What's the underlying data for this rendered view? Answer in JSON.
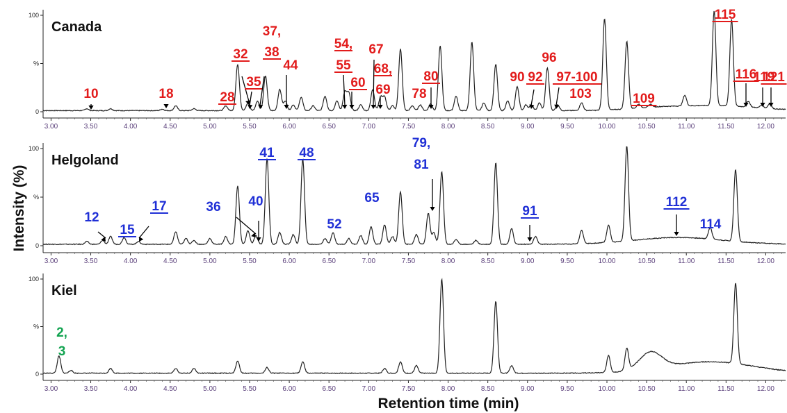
{
  "figure": {
    "ylabel": "Intensity (%)",
    "xlabel": "Retention time (min)"
  },
  "colors": {
    "trace": "#222222",
    "red": "#e21b1b",
    "blue": "#1f2fd6",
    "green": "#12a350",
    "tick": "#5a3f7a"
  },
  "chart_data": [
    {
      "type": "line",
      "title": "Canada",
      "xlabel": "Retention time (min)",
      "ylabel": "Intensity (%)",
      "xlim": [
        2.9,
        12.25
      ],
      "ylim": [
        0,
        100
      ],
      "xticks": [
        "3.00",
        "3.50",
        "4.00",
        "4.50",
        "5.00",
        "5.50",
        "6.00",
        "6.50",
        "7.00",
        "7.50",
        "8.00",
        "8.50",
        "9.00",
        "9.50",
        "10.00",
        "10.50",
        "11.00",
        "11.50",
        "12.00"
      ],
      "yticks": [
        "0",
        "%",
        "100"
      ],
      "grid": false,
      "baseline": 1.2,
      "peaks": [
        {
          "rt": 3.45,
          "h": 2
        },
        {
          "rt": 3.75,
          "h": 2
        },
        {
          "rt": 4.4,
          "h": 1.5
        },
        {
          "rt": 4.57,
          "h": 5
        },
        {
          "rt": 4.8,
          "h": 2
        },
        {
          "rt": 5.2,
          "h": 5
        },
        {
          "rt": 5.35,
          "h": 48
        },
        {
          "rt": 5.48,
          "h": 8
        },
        {
          "rt": 5.6,
          "h": 10
        },
        {
          "rt": 5.7,
          "h": 36
        },
        {
          "rt": 5.88,
          "h": 22
        },
        {
          "rt": 5.95,
          "h": 10
        },
        {
          "rt": 6.05,
          "h": 6
        },
        {
          "rt": 6.15,
          "h": 14
        },
        {
          "rt": 6.3,
          "h": 5
        },
        {
          "rt": 6.45,
          "h": 15
        },
        {
          "rt": 6.6,
          "h": 10
        },
        {
          "rt": 6.7,
          "h": 19
        },
        {
          "rt": 6.75,
          "h": 18
        },
        {
          "rt": 6.9,
          "h": 6
        },
        {
          "rt": 7.05,
          "h": 22
        },
        {
          "rt": 7.15,
          "h": 14
        },
        {
          "rt": 7.2,
          "h": 14
        },
        {
          "rt": 7.3,
          "h": 5
        },
        {
          "rt": 7.4,
          "h": 64
        },
        {
          "rt": 7.55,
          "h": 5
        },
        {
          "rt": 7.65,
          "h": 6
        },
        {
          "rt": 7.78,
          "h": 7
        },
        {
          "rt": 7.9,
          "h": 67
        },
        {
          "rt": 8.1,
          "h": 15
        },
        {
          "rt": 8.3,
          "h": 71
        },
        {
          "rt": 8.45,
          "h": 8
        },
        {
          "rt": 8.6,
          "h": 48
        },
        {
          "rt": 8.75,
          "h": 10
        },
        {
          "rt": 8.87,
          "h": 25
        },
        {
          "rt": 8.98,
          "h": 6
        },
        {
          "rt": 9.05,
          "h": 6
        },
        {
          "rt": 9.15,
          "h": 8
        },
        {
          "rt": 9.25,
          "h": 44
        },
        {
          "rt": 9.38,
          "h": 6
        },
        {
          "rt": 9.68,
          "h": 8
        },
        {
          "rt": 9.97,
          "h": 95
        },
        {
          "rt": 10.25,
          "h": 70
        },
        {
          "rt": 10.4,
          "h": 4
        },
        {
          "rt": 10.55,
          "h": 3
        },
        {
          "rt": 10.98,
          "h": 11
        },
        {
          "rt": 11.35,
          "h": 98
        },
        {
          "rt": 11.57,
          "h": 90
        },
        {
          "rt": 11.78,
          "h": 6
        },
        {
          "rt": 11.95,
          "h": 3
        },
        {
          "rt": 12.05,
          "h": 5
        }
      ],
      "drift": [
        {
          "rt": 10.6,
          "h": 2.5,
          "w": 0.35
        },
        {
          "rt": 11.4,
          "h": 5,
          "w": 0.5
        }
      ],
      "annotations": [
        {
          "label": "10",
          "underline": false,
          "color": "red",
          "rt": 3.45
        },
        {
          "label": "18",
          "underline": false,
          "color": "red",
          "rt": 4.4
        },
        {
          "label": "28",
          "underline": true,
          "color": "red",
          "rt": 5.2
        },
        {
          "label": "32",
          "underline": true,
          "color": "red",
          "rt": 5.35
        },
        {
          "label": "35",
          "underline": true,
          "color": "red",
          "rt": 5.48
        },
        {
          "label": "37,",
          "underline": false,
          "color": "red",
          "rt": 5.6
        },
        {
          "label": "38",
          "underline": true,
          "color": "red",
          "rt": 5.6
        },
        {
          "label": "44",
          "underline": false,
          "color": "red",
          "rt": 5.95
        },
        {
          "label": "54,",
          "underline": true,
          "color": "red",
          "rt": 6.7
        },
        {
          "label": "55",
          "underline": true,
          "color": "red",
          "rt": 6.7
        },
        {
          "label": "60",
          "underline": true,
          "color": "red",
          "rt": 6.78
        },
        {
          "label": "67",
          "underline": false,
          "color": "red",
          "rt": 7.05
        },
        {
          "label": "68,",
          "underline": true,
          "color": "red",
          "rt": 7.12
        },
        {
          "label": "69",
          "underline": false,
          "color": "red",
          "rt": 7.12
        },
        {
          "label": "78",
          "underline": false,
          "color": "red",
          "rt": 7.62
        },
        {
          "label": "80",
          "underline": true,
          "color": "red",
          "rt": 7.78
        },
        {
          "label": "90",
          "underline": false,
          "color": "red",
          "rt": 8.87
        },
        {
          "label": "92",
          "underline": true,
          "color": "red",
          "rt": 9.05
        },
        {
          "label": "96",
          "underline": false,
          "color": "red",
          "rt": 9.25
        },
        {
          "label": "97-100",
          "underline": true,
          "color": "red",
          "rt": 9.38
        },
        {
          "label": "103",
          "underline": false,
          "color": "red",
          "rt": 9.68
        },
        {
          "label": "109",
          "underline": true,
          "color": "red",
          "rt": 10.4
        },
        {
          "label": "115",
          "underline": true,
          "color": "red",
          "rt": 11.57
        },
        {
          "label": "116",
          "underline": true,
          "color": "red",
          "rt": 11.78
        },
        {
          "label": "119",
          "underline": false,
          "color": "red",
          "rt": 11.95
        },
        {
          "label": "121",
          "underline": true,
          "color": "red",
          "rt": 12.05
        }
      ]
    },
    {
      "type": "line",
      "title": "Helgoland",
      "xlabel": "Retention time (min)",
      "ylabel": "Intensity (%)",
      "xlim": [
        2.9,
        12.25
      ],
      "ylim": [
        0,
        100
      ],
      "xticks": [
        "3.00",
        "3.50",
        "4.00",
        "4.50",
        "5.00",
        "5.50",
        "6.00",
        "6.50",
        "7.00",
        "7.50",
        "8.00",
        "8.50",
        "9.00",
        "9.50",
        "10.00",
        "10.50",
        "11.00",
        "11.50",
        "12.00"
      ],
      "yticks": [
        "0",
        "%",
        "100"
      ],
      "grid": false,
      "baseline": 1.5,
      "peaks": [
        {
          "rt": 3.45,
          "h": 3
        },
        {
          "rt": 3.65,
          "h": 4
        },
        {
          "rt": 3.75,
          "h": 8
        },
        {
          "rt": 3.92,
          "h": 7
        },
        {
          "rt": 4.1,
          "h": 3
        },
        {
          "rt": 4.57,
          "h": 13
        },
        {
          "rt": 4.7,
          "h": 6
        },
        {
          "rt": 4.8,
          "h": 4
        },
        {
          "rt": 5.0,
          "h": 6
        },
        {
          "rt": 5.2,
          "h": 8
        },
        {
          "rt": 5.35,
          "h": 60
        },
        {
          "rt": 5.48,
          "h": 14
        },
        {
          "rt": 5.58,
          "h": 9
        },
        {
          "rt": 5.72,
          "h": 88
        },
        {
          "rt": 5.88,
          "h": 12
        },
        {
          "rt": 6.05,
          "h": 10
        },
        {
          "rt": 6.17,
          "h": 88
        },
        {
          "rt": 6.45,
          "h": 6
        },
        {
          "rt": 6.55,
          "h": 12
        },
        {
          "rt": 6.75,
          "h": 6
        },
        {
          "rt": 6.9,
          "h": 9
        },
        {
          "rt": 7.03,
          "h": 18
        },
        {
          "rt": 7.2,
          "h": 20
        },
        {
          "rt": 7.3,
          "h": 8
        },
        {
          "rt": 7.4,
          "h": 54
        },
        {
          "rt": 7.6,
          "h": 10
        },
        {
          "rt": 7.75,
          "h": 32
        },
        {
          "rt": 7.82,
          "h": 12
        },
        {
          "rt": 7.92,
          "h": 75
        },
        {
          "rt": 8.1,
          "h": 5
        },
        {
          "rt": 8.35,
          "h": 4
        },
        {
          "rt": 8.6,
          "h": 84
        },
        {
          "rt": 8.8,
          "h": 16
        },
        {
          "rt": 9.1,
          "h": 8
        },
        {
          "rt": 9.68,
          "h": 14
        },
        {
          "rt": 10.02,
          "h": 18
        },
        {
          "rt": 10.25,
          "h": 98
        },
        {
          "rt": 11.3,
          "h": 12
        },
        {
          "rt": 11.62,
          "h": 74
        }
      ],
      "drift": [
        {
          "rt": 10.9,
          "h": 7,
          "w": 0.55
        }
      ],
      "annotations": [
        {
          "label": "12",
          "underline": false,
          "color": "blue",
          "rt": 3.65
        },
        {
          "label": "15",
          "underline": true,
          "color": "blue",
          "rt": 3.92
        },
        {
          "label": "17",
          "underline": true,
          "color": "blue",
          "rt": 4.1
        },
        {
          "label": "36",
          "underline": false,
          "color": "blue",
          "rt": 5.58
        },
        {
          "label": "40",
          "underline": false,
          "color": "blue",
          "rt": 5.6
        },
        {
          "label": "41",
          "underline": true,
          "color": "blue",
          "rt": 5.72
        },
        {
          "label": "48",
          "underline": true,
          "color": "blue",
          "rt": 6.17
        },
        {
          "label": "52",
          "underline": false,
          "color": "blue",
          "rt": 6.55
        },
        {
          "label": "65",
          "underline": false,
          "color": "blue",
          "rt": 7.03
        },
        {
          "label": "79,",
          "underline": false,
          "color": "blue",
          "rt": 7.75
        },
        {
          "label": "81",
          "underline": false,
          "color": "blue",
          "rt": 7.75
        },
        {
          "label": "91",
          "underline": true,
          "color": "blue",
          "rt": 9.0
        },
        {
          "label": "112",
          "underline": true,
          "color": "blue",
          "rt": 10.88
        },
        {
          "label": "114",
          "underline": false,
          "color": "blue",
          "rt": 11.3
        }
      ]
    },
    {
      "type": "line",
      "title": "Kiel",
      "xlabel": "Retention time (min)",
      "ylabel": "Intensity (%)",
      "xlim": [
        2.9,
        12.25
      ],
      "ylim": [
        0,
        100
      ],
      "xticks": [
        "3.00",
        "3.50",
        "4.00",
        "4.50",
        "5.00",
        "5.50",
        "6.00",
        "6.50",
        "7.00",
        "7.50",
        "8.00",
        "8.50",
        "9.00",
        "9.50",
        "10.00",
        "10.50",
        "11.00",
        "11.50",
        "12.00"
      ],
      "yticks": [
        "0",
        "%",
        "100"
      ],
      "grid": false,
      "baseline": 1.0,
      "peaks": [
        {
          "rt": 3.1,
          "h": 18
        },
        {
          "rt": 3.25,
          "h": 3
        },
        {
          "rt": 3.75,
          "h": 5
        },
        {
          "rt": 4.57,
          "h": 5
        },
        {
          "rt": 4.8,
          "h": 5
        },
        {
          "rt": 5.35,
          "h": 13
        },
        {
          "rt": 5.72,
          "h": 6
        },
        {
          "rt": 6.17,
          "h": 12
        },
        {
          "rt": 7.2,
          "h": 5
        },
        {
          "rt": 7.4,
          "h": 12
        },
        {
          "rt": 7.6,
          "h": 8
        },
        {
          "rt": 7.92,
          "h": 99
        },
        {
          "rt": 8.6,
          "h": 76
        },
        {
          "rt": 8.8,
          "h": 8
        },
        {
          "rt": 10.02,
          "h": 18
        },
        {
          "rt": 10.25,
          "h": 23
        },
        {
          "rt": 11.62,
          "h": 85
        }
      ],
      "drift": [
        {
          "rt": 10.55,
          "h": 18,
          "w": 0.14
        },
        {
          "rt": 11.3,
          "h": 12,
          "w": 0.55
        }
      ],
      "annotations": [
        {
          "label": "2,",
          "underline": false,
          "color": "green",
          "rt": 3.1
        },
        {
          "label": "3",
          "underline": false,
          "color": "green",
          "rt": 3.1
        }
      ]
    }
  ]
}
